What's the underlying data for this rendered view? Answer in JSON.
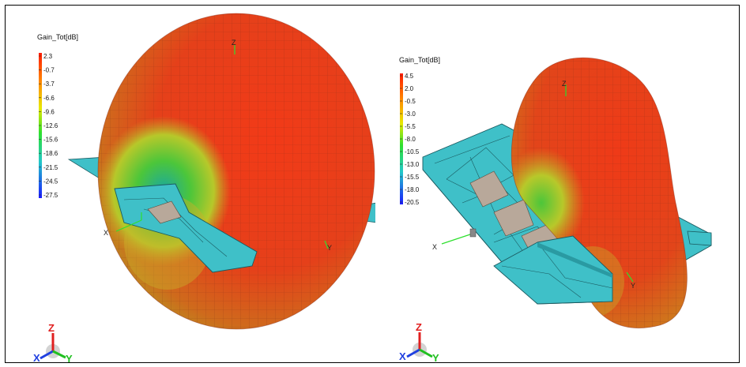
{
  "left_panel": {
    "legend": {
      "title": "Gain_Tot[dB]",
      "ticks": [
        "2.3",
        "-0.7",
        "-3.7",
        "-6.6",
        "-9.6",
        "-12.6",
        "-15.6",
        "-18.6",
        "-21.5",
        "-24.5",
        "-27.5"
      ]
    },
    "axes": {
      "x": "X",
      "y": "Y",
      "z": "Z"
    },
    "triad": {
      "x": "X",
      "y": "Y",
      "z": "Z"
    }
  },
  "right_panel": {
    "legend": {
      "title": "Gain_Tot[dB]",
      "ticks": [
        "4.5",
        "2.0",
        "-0.5",
        "-3.0",
        "-5.5",
        "-8.0",
        "-10.5",
        "-13.0",
        "-15.5",
        "-18.0",
        "-20.5"
      ]
    },
    "axes": {
      "x": "X",
      "y": "Y",
      "z": "Z"
    },
    "triad": {
      "x": "X",
      "y": "Y",
      "z": "Z"
    }
  },
  "colors": {
    "pattern_red": "#e8361a",
    "pattern_orange": "#d8661a",
    "pattern_yellow": "#c8d024",
    "substrate": "#3fc0c8",
    "pad": "#b8a89a",
    "legend_top": "#ff1a00",
    "legend_mid": "#2ee02e",
    "legend_bottom": "#1a1aff"
  }
}
